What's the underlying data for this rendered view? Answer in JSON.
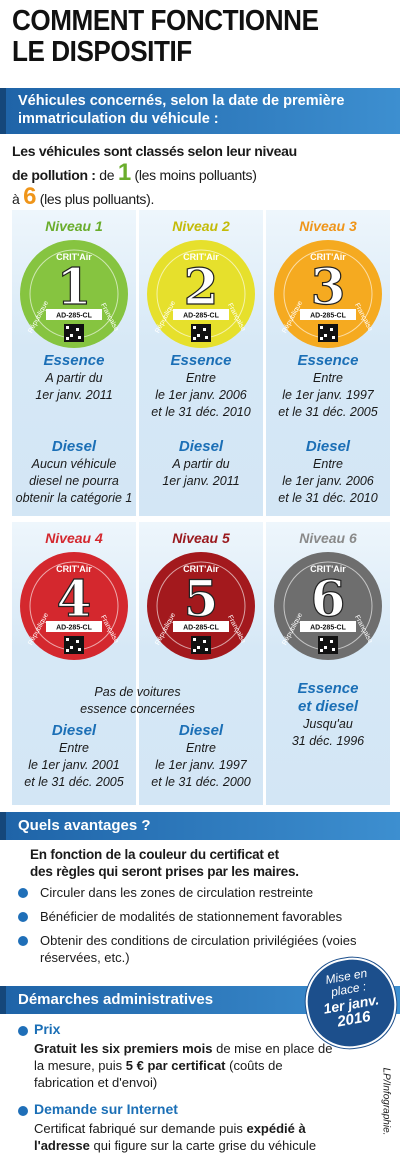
{
  "title": [
    "COMMENT FONCTIONNE",
    "LE DISPOSITIF"
  ],
  "section1": {
    "heading": [
      "Véhicules concernés, selon la date de première",
      "immatriculation du véhicule :"
    ],
    "intro": {
      "line1": "Les véhicules sont classés selon leur niveau",
      "line2_bold": "de pollution :",
      "from": "de",
      "min": "1",
      "min_note": "(les moins polluants)",
      "to": "à",
      "max": "6",
      "max_note": "(les plus polluants)."
    },
    "sticker": {
      "brand": "CRIT'Air",
      "plate": "AD-285-CL",
      "left": "République",
      "right": "Française"
    },
    "levels": [
      {
        "label": "Niveau 1",
        "number": "1",
        "color": "#86c440",
        "label_color": "#6aad2c",
        "blocks": [
          {
            "title": [
              "Essence"
            ],
            "lines": [
              "A partir du",
              "1er janv. 2011"
            ]
          },
          {
            "title": [
              "Diesel"
            ],
            "lines": [
              "Aucun véhicule",
              "diesel ne pourra",
              "obtenir la catégorie 1"
            ]
          }
        ]
      },
      {
        "label": "Niveau 2",
        "number": "2",
        "color": "#e6e02c",
        "label_color": "#c4bb08",
        "blocks": [
          {
            "title": [
              "Essence"
            ],
            "lines": [
              "Entre",
              "le 1er janv. 2006",
              "et le 31 déc. 2010"
            ]
          },
          {
            "title": [
              "Diesel"
            ],
            "lines": [
              "A partir du",
              "1er janv. 2011"
            ]
          }
        ]
      },
      {
        "label": "Niveau 3",
        "number": "3",
        "color": "#f5aa20",
        "label_color": "#ef951a",
        "blocks": [
          {
            "title": [
              "Essence"
            ],
            "lines": [
              "Entre",
              "le 1er janv. 1997",
              "et le 31 déc. 2005"
            ]
          },
          {
            "title": [
              "Diesel"
            ],
            "lines": [
              "Entre",
              "le 1er janv. 2006",
              "et le 31 déc. 2010"
            ]
          }
        ]
      },
      {
        "label": "Niveau 4",
        "number": "4",
        "color": "#d4282e",
        "label_color": "#d4282e",
        "blocks": [
          {
            "title": [
              "Diesel"
            ],
            "lines": [
              "Entre",
              "le 1er janv. 2001",
              "et le 31 déc. 2005"
            ]
          }
        ]
      },
      {
        "label": "Niveau 5",
        "number": "5",
        "color": "#a3191d",
        "label_color": "#9a1a1e",
        "blocks": [
          {
            "title": [
              "Diesel"
            ],
            "lines": [
              "Entre",
              "le 1er janv. 1997",
              "et le 31 déc. 2000"
            ]
          }
        ]
      },
      {
        "label": "Niveau 6",
        "number": "6",
        "color": "#6e6e6e",
        "label_color": "#8a8a8a",
        "blocks": [
          {
            "title": [
              "Essence",
              "et diesel"
            ],
            "lines": [
              "Jusqu'au",
              "31 déc. 1996"
            ]
          }
        ]
      }
    ],
    "row2_note": [
      "Pas de voitures",
      "essence concernées"
    ]
  },
  "section2": {
    "heading": "Quels avantages ?",
    "intro": [
      "En fonction de la couleur du certificat et",
      "des règles qui seront prises par les maires."
    ],
    "bullets": [
      "Circuler dans les zones de circulation restreinte",
      "Bénéficier de modalités de stationnement favorables",
      "Obtenir des conditions de circulation privilégiées (voies réservées, etc.)"
    ]
  },
  "section3": {
    "heading": "Démarches administratives",
    "badge": [
      "Mise en",
      "place :",
      "1er janv.",
      "2016"
    ],
    "price": {
      "title": "Prix",
      "bold1": "Gratuit les six premiers mois",
      "text1": "de mise en place de la mesure, puis",
      "bold2": "5 € par certificat",
      "text2": "(coûts de fabrication et d'envoi)"
    },
    "internet": {
      "title": "Demande sur Internet",
      "text1": "Certificat fabriqué sur demande puis",
      "bold": "expédié à l'adresse",
      "text2": "qui figure sur la carte grise du véhicule"
    }
  },
  "credit": "LP/Infographie."
}
